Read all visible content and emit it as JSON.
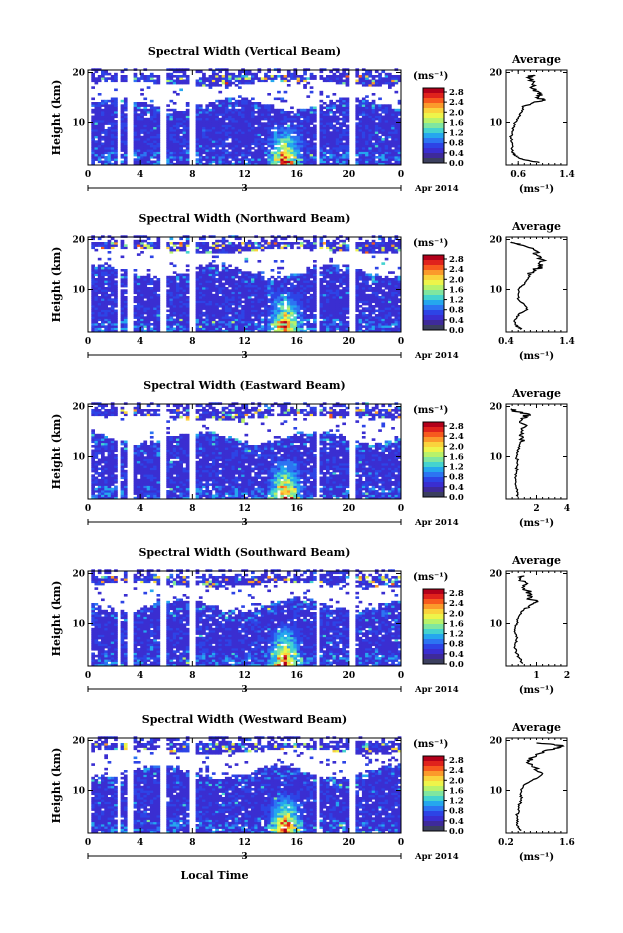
{
  "chart_data": {
    "type": "heatmap",
    "common": {
      "x_ticks": [
        "0",
        "4",
        "8",
        "12",
        "16",
        "20",
        "0"
      ],
      "y_ticks": [
        "20",
        "10"
      ],
      "ylabel": "Height (km)",
      "date_day": "3",
      "date_label": "Apr 2014",
      "xlabel": "Local Time",
      "xlim": [
        0,
        24
      ],
      "ylim": [
        1.5,
        20.5
      ],
      "colorbar": {
        "unit": "(ms⁻¹)",
        "ticks": [
          "2.8",
          "2.4",
          "2.0",
          "1.6",
          "1.2",
          "0.8",
          "0.4",
          "0.0"
        ],
        "colors": [
          "#b3001a",
          "#e0221c",
          "#f75a1e",
          "#fb9a2b",
          "#fad33c",
          "#eef44a",
          "#b8f26a",
          "#7fe6a0",
          "#44d3cf",
          "#25a7ee",
          "#2c74f2",
          "#2d44e6",
          "#3a2ed1",
          "#3e2a9a",
          "#3b3f5e"
        ]
      },
      "avg_title": "Average",
      "avg_unit": "(ms⁻¹)",
      "avg_y_ticks": [
        "20",
        "10"
      ]
    },
    "panels": [
      {
        "title": "Spectral Width (Vertical Beam)",
        "avg_xlim": [
          0.4,
          1.4
        ],
        "avg_xticks": [
          "0.6",
          "1.4"
        ],
        "avg_profile": {
          "height": [
            2,
            2.5,
            3,
            3.5,
            4,
            5,
            6,
            7,
            8,
            9,
            10,
            11,
            12,
            13,
            14,
            14.5,
            15,
            15.5,
            16,
            17,
            18,
            19,
            19.5
          ],
          "value": [
            0.95,
            0.72,
            0.6,
            0.55,
            0.5,
            0.5,
            0.5,
            0.48,
            0.5,
            0.52,
            0.55,
            0.6,
            0.65,
            0.68,
            0.85,
            1.05,
            0.9,
            1.0,
            0.95,
            0.8,
            0.85,
            0.75,
            0.85
          ]
        }
      },
      {
        "title": "Spectral Width (Northward Beam)",
        "avg_xlim": [
          0.4,
          1.4
        ],
        "avg_xticks": [
          "0.4",
          "1.4"
        ],
        "avg_profile": {
          "height": [
            2,
            2.5,
            3,
            4,
            5,
            6,
            7,
            8,
            9,
            10,
            11,
            12,
            13,
            14,
            14.5,
            15,
            16,
            17,
            18,
            19,
            19.5
          ],
          "value": [
            0.65,
            0.6,
            0.55,
            0.55,
            0.6,
            0.75,
            0.7,
            0.6,
            0.6,
            0.6,
            0.7,
            0.75,
            0.8,
            0.85,
            1.0,
            0.95,
            1.0,
            0.9,
            0.85,
            0.6,
            0.5
          ]
        }
      },
      {
        "title": "Spectral Width (Eastward Beam)",
        "avg_xlim": [
          0,
          4
        ],
        "avg_xticks": [
          "2",
          "4"
        ],
        "avg_profile": {
          "height": [
            2,
            3,
            4,
            5,
            6,
            7,
            8,
            9,
            10,
            11,
            12,
            13,
            14,
            15,
            16,
            17,
            18,
            18.5,
            19,
            19.5
          ],
          "value": [
            0.8,
            0.7,
            0.65,
            0.65,
            0.65,
            0.7,
            0.7,
            0.75,
            0.7,
            0.8,
            0.9,
            1.0,
            1.1,
            1.0,
            1.3,
            0.9,
            1.2,
            1.5,
            0.6,
            0.4
          ]
        }
      },
      {
        "title": "Spectral Width (Southward Beam)",
        "avg_xlim": [
          0,
          2
        ],
        "avg_xticks": [
          "1",
          "2"
        ],
        "avg_profile": {
          "height": [
            2,
            3,
            4,
            5,
            6,
            7,
            8,
            9,
            10,
            11,
            12,
            13,
            14,
            14.5,
            15,
            16,
            17,
            18,
            19,
            19.5
          ],
          "value": [
            0.55,
            0.45,
            0.35,
            0.3,
            0.3,
            0.35,
            0.3,
            0.3,
            0.35,
            0.4,
            0.5,
            0.6,
            0.9,
            1.0,
            0.7,
            0.8,
            0.6,
            0.7,
            0.45,
            0.6
          ]
        }
      },
      {
        "title": "Spectral Width (Westward Beam)",
        "avg_xlim": [
          0.2,
          1.6
        ],
        "avg_xticks": [
          "0.2",
          "1.6"
        ],
        "avg_profile": {
          "height": [
            2,
            3,
            4,
            5,
            6,
            7,
            8,
            9,
            10,
            11,
            12,
            13,
            14,
            15,
            16,
            17,
            18,
            18.5,
            19,
            19.5
          ],
          "value": [
            0.55,
            0.45,
            0.45,
            0.45,
            0.5,
            0.5,
            0.55,
            0.55,
            0.55,
            0.6,
            0.8,
            1.0,
            0.9,
            0.8,
            0.7,
            0.9,
            1.1,
            1.4,
            1.5,
            0.9
          ]
        }
      }
    ]
  }
}
